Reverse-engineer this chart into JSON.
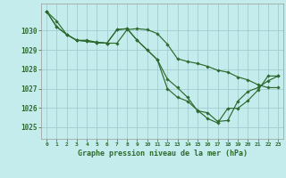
{
  "title": "Graphe pression niveau de la mer (hPa)",
  "bg": "#c5eced",
  "lc": "#2d6a2d",
  "grid_color": "#9ecbce",
  "ylim": [
    1024.4,
    1031.4
  ],
  "xlim": [
    -0.5,
    23.5
  ],
  "y_ticks": [
    1025,
    1026,
    1027,
    1028,
    1029,
    1030
  ],
  "x_ticks": [
    0,
    1,
    2,
    3,
    4,
    5,
    6,
    7,
    8,
    9,
    10,
    11,
    12,
    13,
    14,
    15,
    16,
    17,
    18,
    19,
    20,
    21,
    22,
    23
  ],
  "s1": [
    1031.0,
    1030.5,
    1029.8,
    1029.5,
    1029.5,
    1029.4,
    1029.35,
    1029.35,
    1030.05,
    1030.1,
    1030.05,
    1029.85,
    1029.3,
    1028.55,
    1028.4,
    1028.3,
    1028.15,
    1027.95,
    1027.85,
    1027.6,
    1027.45,
    1027.2,
    1027.05,
    1027.05
  ],
  "s2": [
    1031.0,
    1030.2,
    1029.8,
    1029.5,
    1029.45,
    1029.38,
    1029.35,
    1030.05,
    1030.1,
    1029.5,
    1029.0,
    1028.5,
    1027.5,
    1027.05,
    1026.55,
    1025.85,
    1025.75,
    1025.3,
    1025.35,
    1026.35,
    1026.85,
    1027.05,
    1027.4,
    1027.65
  ],
  "s3": [
    1031.0,
    1030.2,
    1029.8,
    1029.5,
    1029.45,
    1029.38,
    1029.35,
    1030.05,
    1030.1,
    1029.5,
    1029.0,
    1028.5,
    1027.0,
    1026.55,
    1026.35,
    1025.88,
    1025.45,
    1025.22,
    1025.98,
    1025.98,
    1026.38,
    1026.92,
    1027.65,
    1027.65
  ]
}
